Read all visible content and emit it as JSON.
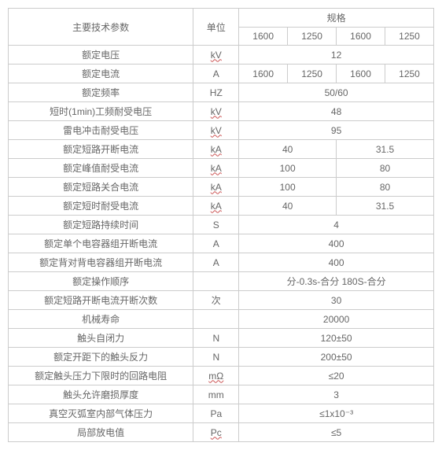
{
  "header": {
    "main_param": "主要技术参数",
    "unit": "单位",
    "spec": "规格",
    "spec_cols": [
      "1600",
      "1250",
      "1600",
      "1250"
    ]
  },
  "rows": [
    {
      "label": "额定电压",
      "unit": "kV",
      "unit_underlined": true,
      "value": "12",
      "span": 4
    },
    {
      "label": "额定电流",
      "unit": "A",
      "values": [
        "1600",
        "1250",
        "1600",
        "1250"
      ],
      "span": 1
    },
    {
      "label": "额定频率",
      "unit": "HZ",
      "value": "50/60",
      "span": 4
    },
    {
      "label": "短时(1min)工频耐受电压",
      "unit": "kV",
      "unit_underlined": true,
      "value": "48",
      "span": 4
    },
    {
      "label": "雷电冲击耐受电压",
      "unit": "kV",
      "unit_underlined": true,
      "value": "95",
      "span": 4
    },
    {
      "label": "额定短路开断电流",
      "unit": "kA",
      "unit_underlined": true,
      "values": [
        "40",
        "31.5"
      ],
      "span": 2
    },
    {
      "label": "额定峰值耐受电流",
      "unit": "kA",
      "unit_underlined": true,
      "values": [
        "100",
        "80"
      ],
      "span": 2
    },
    {
      "label": "额定短路关合电流",
      "unit": "kA",
      "unit_underlined": true,
      "values": [
        "100",
        "80"
      ],
      "span": 2
    },
    {
      "label": "额定短时耐受电流",
      "unit": "kA",
      "unit_underlined": true,
      "values": [
        "40",
        "31.5"
      ],
      "span": 2
    },
    {
      "label": "额定短路持续时间",
      "unit": "S",
      "value": "4",
      "span": 4
    },
    {
      "label": "额定单个电容器组开断电流",
      "unit": "A",
      "value": "400",
      "span": 4
    },
    {
      "label": "额定背对背电容器组开断电流",
      "unit": "A",
      "value": "400",
      "span": 4
    },
    {
      "label": "额定操作顺序",
      "unit": "",
      "value": "分-0.3s-合分 180S-合分",
      "span": 4
    },
    {
      "label": "额定短路开断电流开断次数",
      "unit": "次",
      "value": "30",
      "span": 4
    },
    {
      "label": "机械寿命",
      "unit": "",
      "value": "20000",
      "span": 4
    },
    {
      "label": "触头自闭力",
      "unit": "N",
      "value": "120±50",
      "span": 4
    },
    {
      "label": "额定开距下的触头反力",
      "unit": "N",
      "value": "200±50",
      "span": 4
    },
    {
      "label": "额定触头压力下限时的回路电阻",
      "unit": "mΩ",
      "unit_underlined": true,
      "value": "≤20",
      "span": 4
    },
    {
      "label": "触头允许磨损厚度",
      "unit": "mm",
      "value": "3",
      "span": 4
    },
    {
      "label": "真空灭弧室内部气体压力",
      "unit": "Pa",
      "value": "≤1x10⁻³",
      "span": 4
    },
    {
      "label": "局部放电值",
      "unit": "Pc",
      "unit_underlined": true,
      "value": "≤5",
      "span": 4
    }
  ],
  "col_widths": {
    "param": 228,
    "unit": 56,
    "spec": 60
  }
}
